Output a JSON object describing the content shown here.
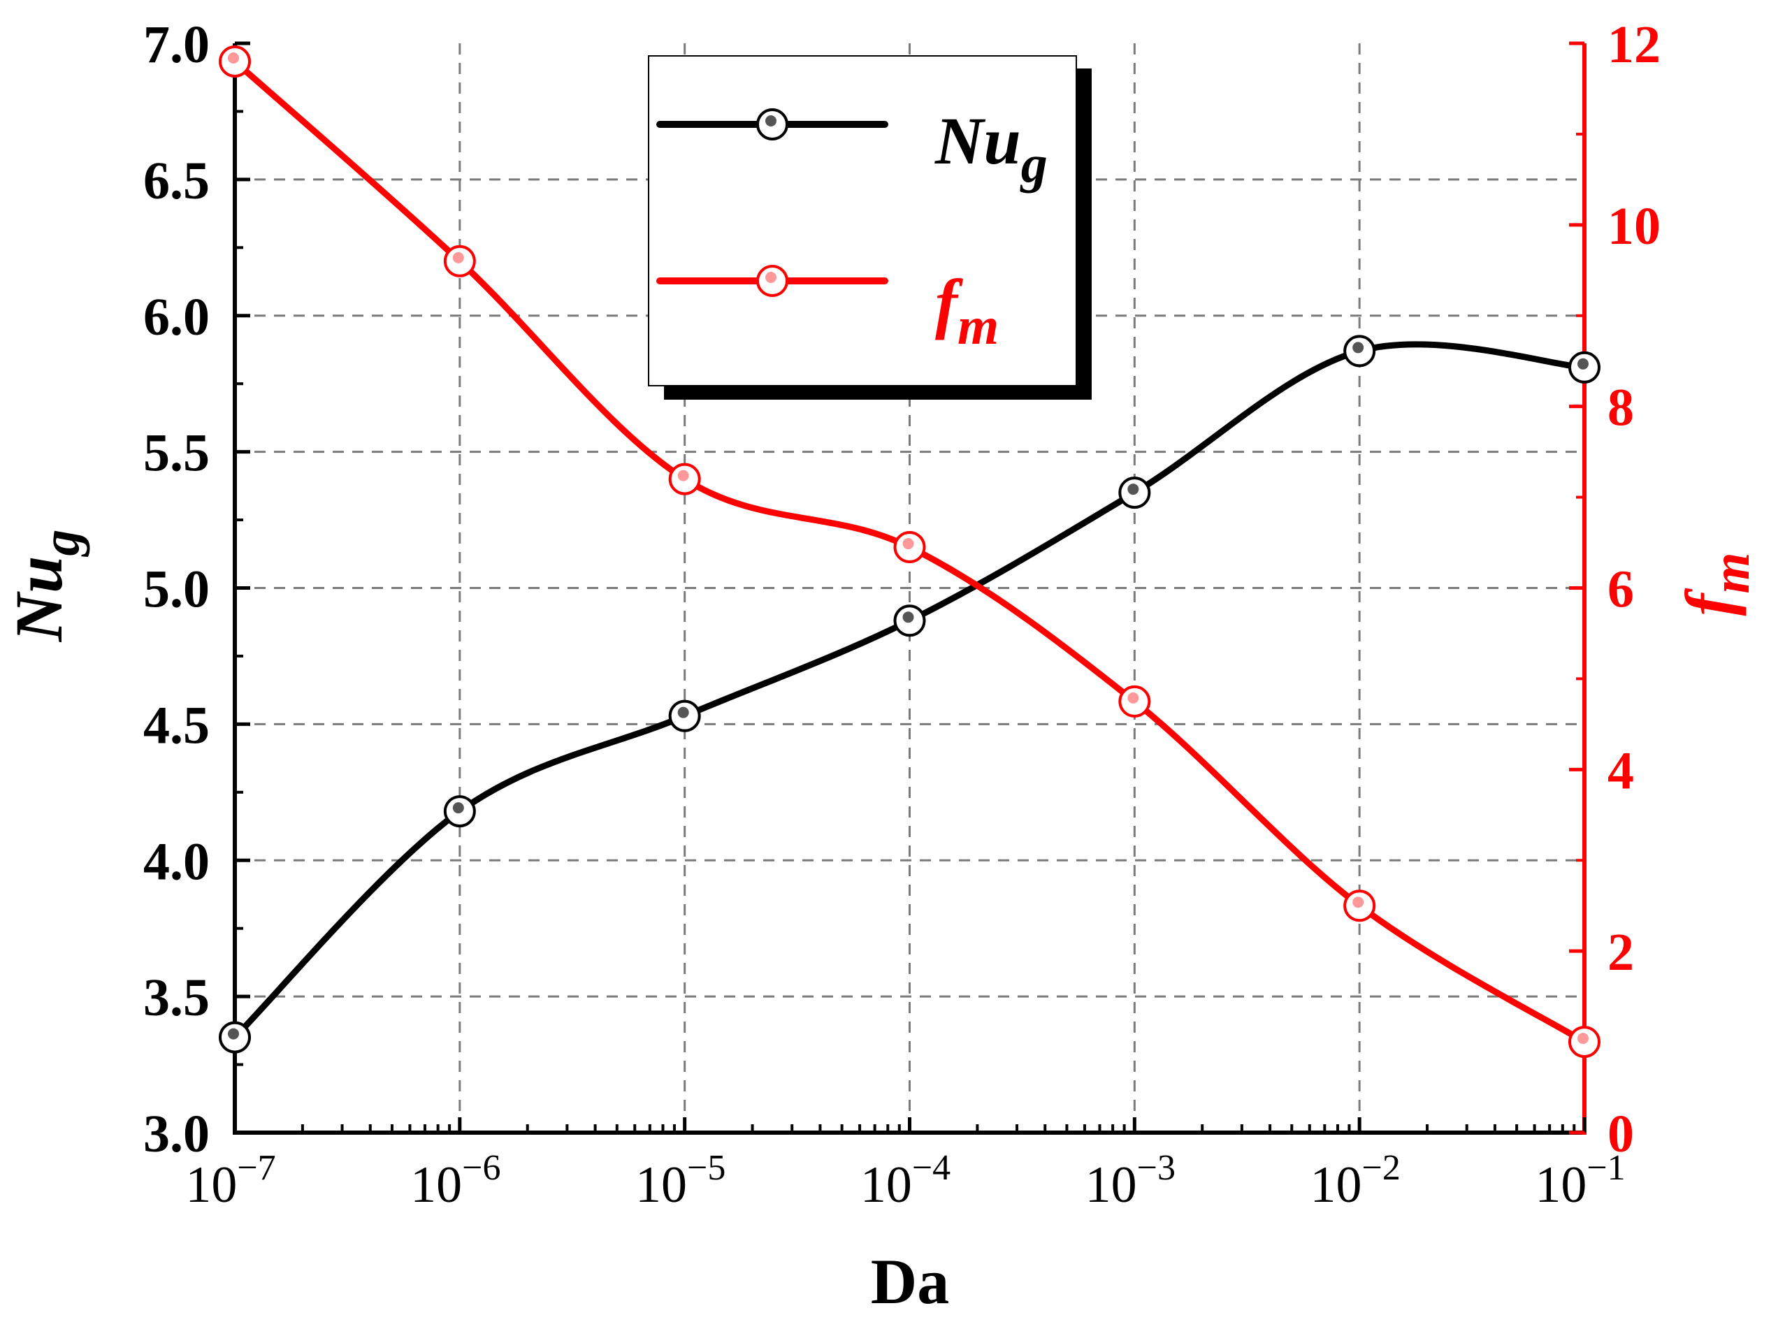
{
  "chart_data": {
    "type": "line",
    "title": "",
    "xlabel": "Da",
    "xscale": "log",
    "x": [
      1e-07,
      1e-06,
      1e-05,
      0.0001,
      0.001,
      0.01,
      0.1
    ],
    "xtick_labels": [
      {
        "base": "10",
        "exp": "−7"
      },
      {
        "base": "10",
        "exp": "−6"
      },
      {
        "base": "10",
        "exp": "−5"
      },
      {
        "base": "10",
        "exp": "−4"
      },
      {
        "base": "10",
        "exp": "−3"
      },
      {
        "base": "10",
        "exp": "−2"
      },
      {
        "base": "10",
        "exp": "−1"
      }
    ],
    "y_left": {
      "label_main": "Nu",
      "label_sub": "g",
      "ylim": [
        3.0,
        7.0
      ],
      "ticks": [
        "3.0",
        "3.5",
        "4.0",
        "4.5",
        "5.0",
        "5.5",
        "6.0",
        "6.5",
        "7.0"
      ]
    },
    "y_right": {
      "label_main": "f",
      "label_sub": "m",
      "ylim": [
        0,
        12
      ],
      "ticks": [
        "0",
        "2",
        "4",
        "6",
        "8",
        "10",
        "12"
      ]
    },
    "series": [
      {
        "name_main": "Nu",
        "name_sub": "g",
        "axis": "left",
        "color": "#000000",
        "values": [
          3.35,
          4.18,
          4.53,
          4.88,
          5.35,
          5.87,
          5.81
        ]
      },
      {
        "name_main": "f",
        "name_sub": "m",
        "axis": "right",
        "color": "#ff0000",
        "values": [
          11.8,
          9.6,
          7.2,
          6.45,
          4.75,
          2.5,
          1.0
        ]
      }
    ],
    "legend_position": "top-center",
    "grid": true
  }
}
